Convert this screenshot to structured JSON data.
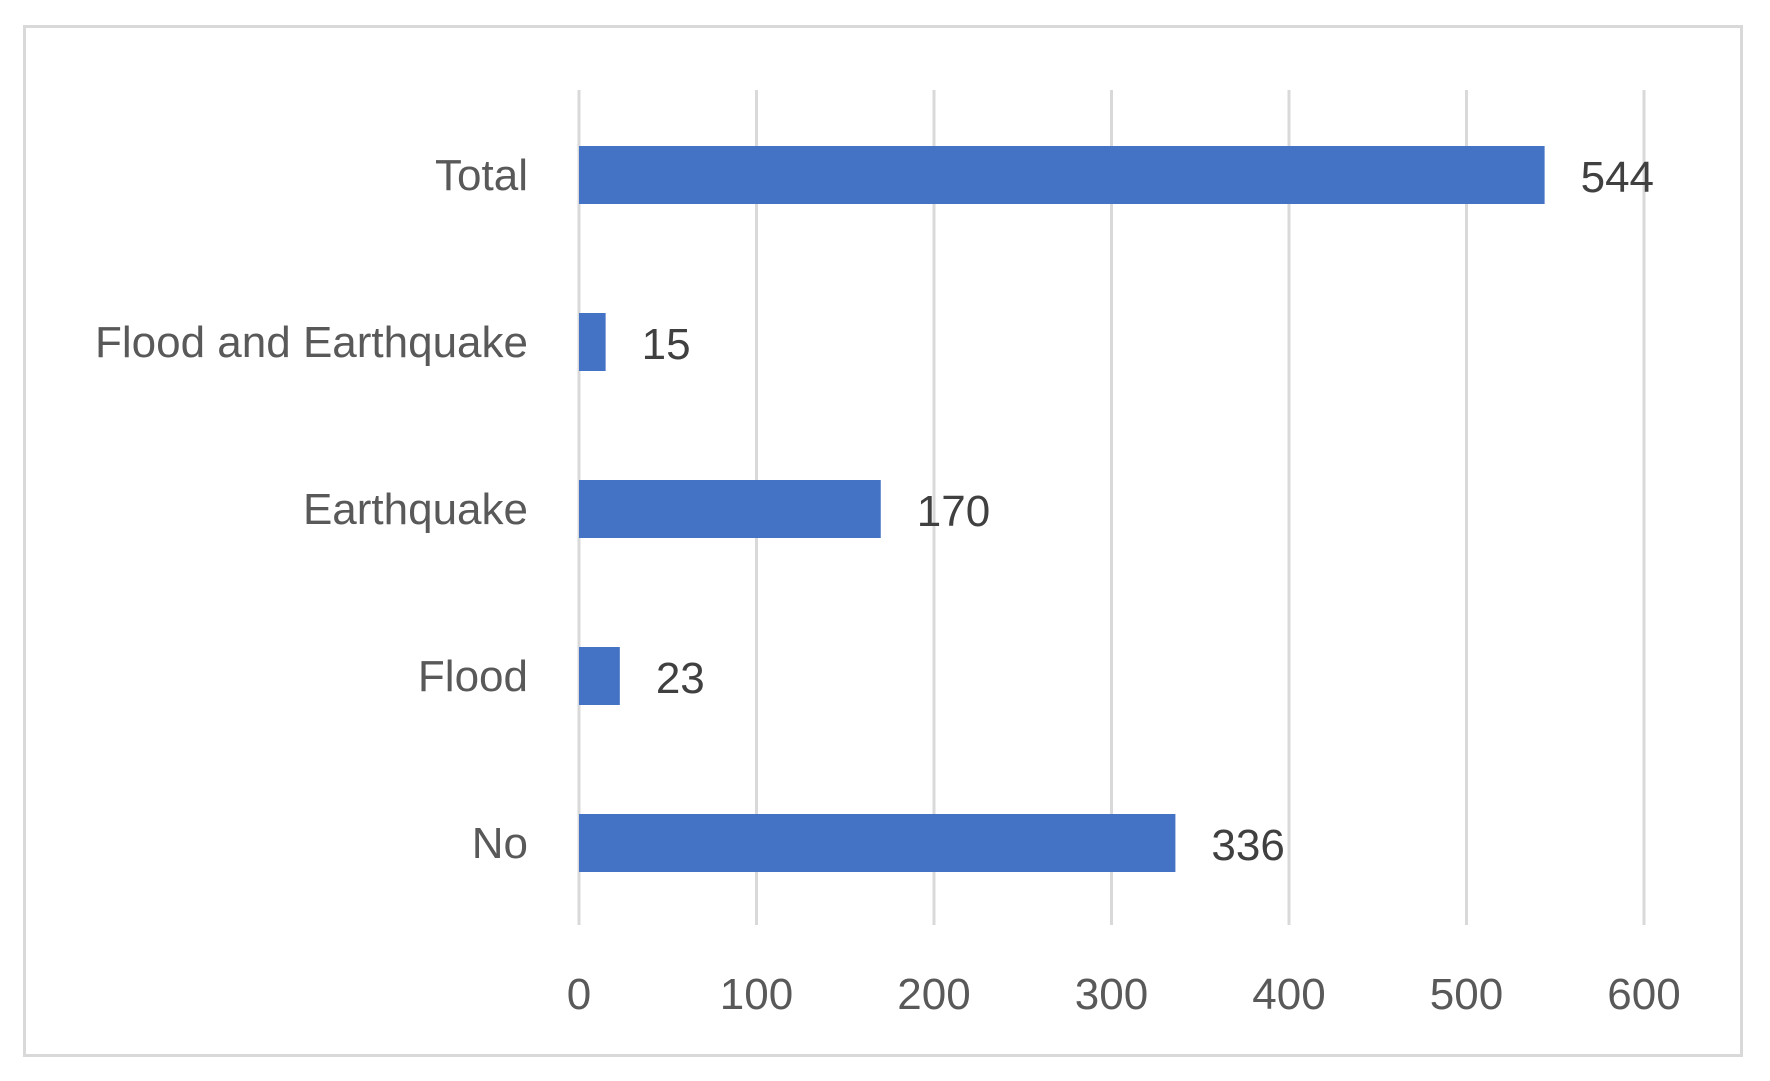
{
  "chart_data": {
    "type": "bar",
    "orientation": "horizontal",
    "categories": [
      "No",
      "Flood",
      "Earthquake",
      "Flood and Earthquake",
      "Total"
    ],
    "values": [
      336,
      23,
      170,
      15,
      544
    ],
    "data_labels": [
      "336",
      "23",
      "170",
      "15",
      "544"
    ],
    "xlim": [
      0,
      600
    ],
    "x_ticks": [
      0,
      100,
      200,
      300,
      400,
      500,
      600
    ],
    "x_tick_labels": [
      "0",
      "100",
      "200",
      "300",
      "400",
      "500",
      "600"
    ],
    "grid": "vertical",
    "legend": "none",
    "bar_color": "#4472C4",
    "gridline_color": "#d9d9d9"
  }
}
